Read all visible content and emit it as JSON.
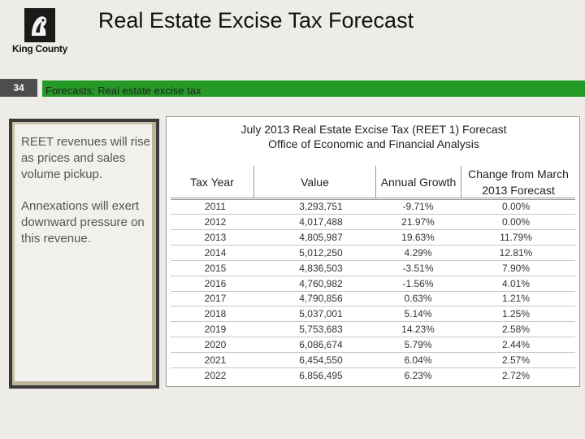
{
  "header": {
    "logo_text": "King County",
    "title": "Real Estate Excise Tax Forecast",
    "slide_number": "34",
    "subtitle": "Forecasts:  Real estate excise tax"
  },
  "text_box": {
    "paragraphs": [
      "REET revenues will rise as prices and sales volume pickup.",
      "Annexations  will exert downward pressure on this revenue."
    ]
  },
  "table": {
    "title": "July 2013 Real Estate Excise Tax (REET 1) Forecast",
    "subtitle": "Office of Economic and Financial Analysis",
    "columns": [
      "Tax Year",
      "Value",
      "Annual Growth",
      "Change from March 2013 Forecast"
    ],
    "rows": [
      [
        "2011",
        "3,293,751",
        "-9.71%",
        "0.00%"
      ],
      [
        "2012",
        "4,017,488",
        "21.97%",
        "0.00%"
      ],
      [
        "2013",
        "4,805,987",
        "19.63%",
        "11.79%"
      ],
      [
        "2014",
        "5,012,250",
        "4.29%",
        "12.81%"
      ],
      [
        "2015",
        "4,836,503",
        "-3.51%",
        "7.90%"
      ],
      [
        "2016",
        "4,760,982",
        "-1.56%",
        "4.01%"
      ],
      [
        "2017",
        "4,790,856",
        "0.63%",
        "1.21%"
      ],
      [
        "2018",
        "5,037,001",
        "5.14%",
        "1.25%"
      ],
      [
        "2019",
        "5,753,683",
        "14.23%",
        "2.58%"
      ],
      [
        "2020",
        "6,086,674",
        "5.79%",
        "2.44%"
      ],
      [
        "2021",
        "6,454,550",
        "6.04%",
        "2.57%"
      ],
      [
        "2022",
        "6,856,495",
        "6.23%",
        "2.72%"
      ]
    ]
  }
}
